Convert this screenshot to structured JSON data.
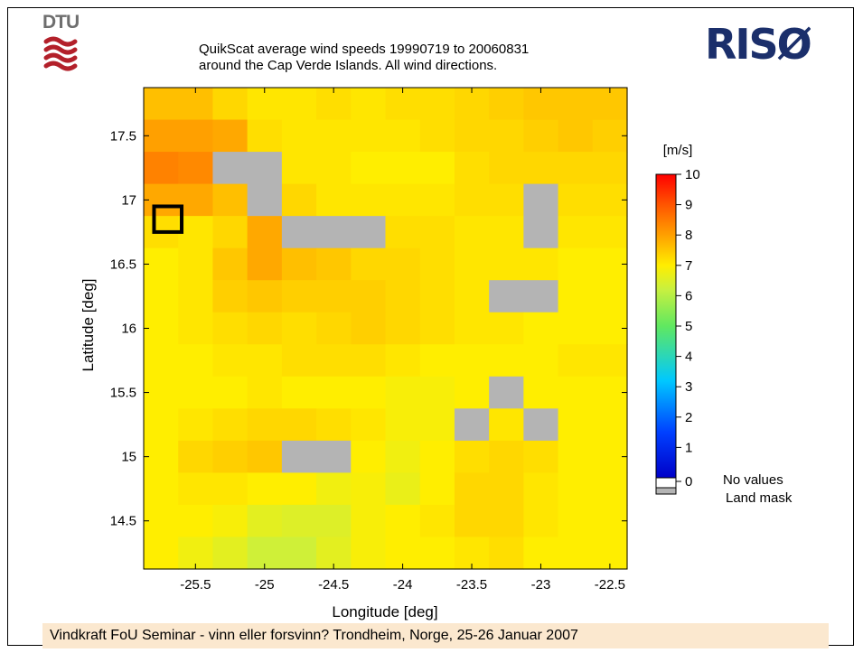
{
  "header": {
    "left_logo_text": "DTU",
    "right_logo_text": "RISØ"
  },
  "chart_data": {
    "type": "heatmap",
    "title": "QuikScat average wind speeds 19990719 to 20060831",
    "subtitle": "around the Cap Verde Islands. All wind directions.",
    "xlabel": "Longitude [deg]",
    "ylabel": "Latitude [deg]",
    "x_ticks": [
      -25.5,
      -25,
      -24.5,
      -24,
      -23.5,
      -23,
      -22.5
    ],
    "x_tick_labels": [
      "-25.5",
      "-25",
      "-24.5",
      "-24",
      "-23.5",
      "-23",
      "-22.5"
    ],
    "y_ticks": [
      14.5,
      15,
      15.5,
      16,
      16.5,
      17,
      17.5
    ],
    "y_tick_labels": [
      "14.5",
      "15",
      "15.5",
      "16",
      "16.5",
      "17",
      "17.5"
    ],
    "xlim": [
      -25.875,
      -22.375
    ],
    "ylim": [
      14.125,
      17.875
    ],
    "cell_size": 0.25,
    "x_centers": [
      -25.75,
      -25.5,
      -25.25,
      -25,
      -24.75,
      -24.5,
      -24.25,
      -24,
      -23.75,
      -23.5,
      -23.25,
      -23,
      -22.75,
      -22.5
    ],
    "y_centers": [
      17.75,
      17.5,
      17.25,
      17,
      16.75,
      16.5,
      16.25,
      16,
      15.75,
      15.5,
      15.25,
      15,
      14.75,
      14.5,
      14.25
    ],
    "grid_note": "rows from north (17.75) to south (14.25); null = land mask",
    "values": [
      [
        7.6,
        7.6,
        7.3,
        7.1,
        7.1,
        7.2,
        7.1,
        7.2,
        7.2,
        7.3,
        7.4,
        7.5,
        7.5,
        7.5
      ],
      [
        8.0,
        8.0,
        7.9,
        7.2,
        7.1,
        7.1,
        7.1,
        7.1,
        7.2,
        7.3,
        7.3,
        7.4,
        7.5,
        7.4
      ],
      [
        8.4,
        8.3,
        null,
        null,
        7.1,
        7.1,
        7.0,
        7.0,
        7.0,
        7.2,
        7.3,
        7.3,
        7.3,
        7.3
      ],
      [
        7.9,
        7.9,
        7.6,
        null,
        7.3,
        7.1,
        7.1,
        7.1,
        7.1,
        7.2,
        7.2,
        null,
        7.2,
        7.2
      ],
      [
        7.2,
        7.1,
        7.3,
        7.9,
        null,
        null,
        null,
        7.2,
        7.2,
        7.1,
        7.1,
        null,
        7.1,
        7.1
      ],
      [
        7.0,
        7.1,
        7.5,
        7.9,
        7.6,
        7.5,
        7.3,
        7.3,
        7.2,
        7.1,
        7.1,
        7.1,
        7.0,
        7.0
      ],
      [
        7.0,
        7.1,
        7.4,
        7.5,
        7.4,
        7.4,
        7.4,
        7.3,
        7.2,
        7.1,
        null,
        null,
        7.0,
        7.0
      ],
      [
        7.0,
        7.1,
        7.2,
        7.3,
        7.2,
        7.3,
        7.4,
        7.3,
        7.2,
        7.1,
        7.1,
        7.0,
        7.0,
        7.0
      ],
      [
        7.0,
        7.0,
        7.1,
        7.1,
        7.2,
        7.2,
        7.2,
        7.1,
        7.0,
        7.0,
        7.0,
        7.0,
        7.1,
        7.1
      ],
      [
        7.0,
        7.0,
        7.0,
        7.1,
        7.0,
        7.0,
        7.0,
        6.9,
        6.9,
        7.0,
        null,
        7.0,
        7.0,
        7.0
      ],
      [
        7.0,
        7.1,
        7.2,
        7.3,
        7.3,
        7.2,
        7.1,
        6.9,
        6.9,
        null,
        7.1,
        null,
        7.0,
        7.0
      ],
      [
        7.0,
        7.3,
        7.4,
        7.5,
        null,
        null,
        7.0,
        6.8,
        7.0,
        7.2,
        7.3,
        7.2,
        7.0,
        7.0
      ],
      [
        7.0,
        7.1,
        7.1,
        7.0,
        7.0,
        6.8,
        6.9,
        6.7,
        7.0,
        7.3,
        7.3,
        7.1,
        7.0,
        7.0
      ],
      [
        7.0,
        7.0,
        6.9,
        6.6,
        6.5,
        6.5,
        6.9,
        7.0,
        7.1,
        7.3,
        7.3,
        7.1,
        7.0,
        7.0
      ],
      [
        7.0,
        6.8,
        6.6,
        6.3,
        6.3,
        6.6,
        6.9,
        7.0,
        7.0,
        7.1,
        7.2,
        7.0,
        7.0,
        7.0
      ]
    ],
    "highlight_box": {
      "x": [
        -25.8,
        -25.6
      ],
      "y": [
        16.75,
        16.95
      ]
    },
    "colorbar": {
      "label": "[m/s]",
      "min": 0,
      "max": 10,
      "ticks": [
        0,
        1,
        2,
        3,
        4,
        5,
        6,
        7,
        8,
        9,
        10
      ],
      "tick_labels": [
        "0",
        "1",
        "2",
        "3",
        "4",
        "5",
        "6",
        "7",
        "8",
        "9",
        "10"
      ],
      "legend_items": [
        "No values",
        "Land mask"
      ],
      "no_value_color": "#ffffff",
      "land_mask_color": "#b4b4b4"
    },
    "grid": false,
    "legend_placement": "right"
  },
  "footer": {
    "text": "Vindkraft FoU Seminar - vinn eller forsvinn? Trondheim, Norge, 25-26 Januar 2007"
  },
  "colors": {
    "dtu_red": "#b3202a",
    "risoe_blue": "#1b2f6b",
    "footer_bg": "#fbe8cf"
  }
}
